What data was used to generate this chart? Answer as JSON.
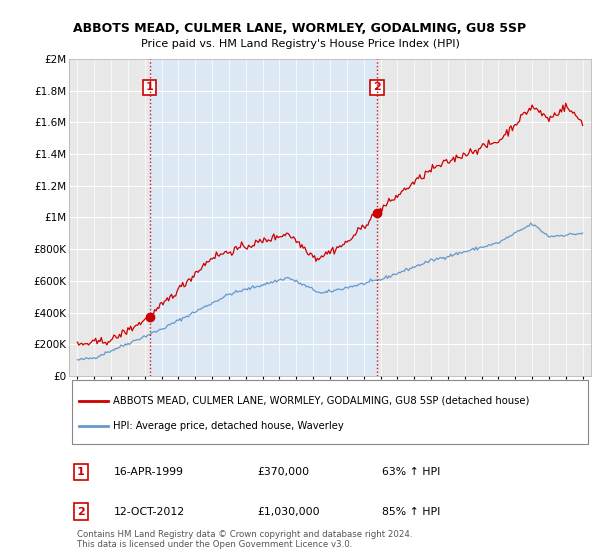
{
  "title": "ABBOTS MEAD, CULMER LANE, WORMLEY, GODALMING, GU8 5SP",
  "subtitle": "Price paid vs. HM Land Registry's House Price Index (HPI)",
  "sale1": {
    "date": 1999.29,
    "price": 370000,
    "label": "1",
    "date_str": "16-APR-1999",
    "pct": "63% ↑ HPI"
  },
  "sale2": {
    "date": 2012.79,
    "price": 1030000,
    "label": "2",
    "date_str": "12-OCT-2012",
    "pct": "85% ↑ HPI"
  },
  "legend_red": "ABBOTS MEAD, CULMER LANE, WORMLEY, GODALMING, GU8 5SP (detached house)",
  "legend_blue": "HPI: Average price, detached house, Waverley",
  "table_row1": [
    "1",
    "16-APR-1999",
    "£370,000",
    "63% ↑ HPI"
  ],
  "table_row2": [
    "2",
    "12-OCT-2012",
    "£1,030,000",
    "85% ↑ HPI"
  ],
  "footnote": "Contains HM Land Registry data © Crown copyright and database right 2024.\nThis data is licensed under the Open Government Licence v3.0.",
  "red_color": "#cc0000",
  "blue_color": "#6699cc",
  "highlight_color": "#dde8f5",
  "ylim": [
    0,
    2000000
  ],
  "yticks": [
    0,
    200000,
    400000,
    600000,
    800000,
    1000000,
    1200000,
    1400000,
    1600000,
    1800000,
    2000000
  ],
  "xlim": [
    1994.5,
    2025.5
  ],
  "background": "#ffffff",
  "plot_bg": "#e8e8e8"
}
